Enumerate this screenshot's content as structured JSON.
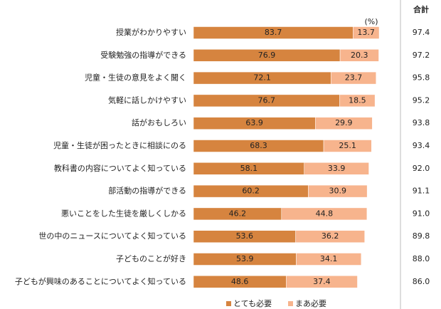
{
  "chart_data": {
    "type": "stacked-bar",
    "unit_label": "(%)",
    "categories": [
      "授業がわかりやすい",
      "受験勉強の指導ができる",
      "児童・生徒の意見をよく聞く",
      "気軽に話しかけやすい",
      "話がおもしろい",
      "児童・生徒が困ったときに相談にのる",
      "教科書の内容についてよく知っている",
      "部活動の指導ができる",
      "悪いことをした生徒を厳しくしかる",
      "世の中のニュースについてよく知っている",
      "子どものことが好き",
      "子どもが興味のあることについてよく知っている"
    ],
    "series": [
      {
        "name": "とても必要",
        "color": "#d6843f",
        "values": [
          83.7,
          76.9,
          72.1,
          76.7,
          63.9,
          68.3,
          58.1,
          60.2,
          46.2,
          53.6,
          53.9,
          48.6
        ]
      },
      {
        "name": "まあ必要",
        "color": "#f7b48d",
        "values": [
          13.7,
          20.3,
          23.7,
          18.5,
          29.9,
          25.1,
          33.9,
          30.9,
          44.8,
          36.2,
          34.1,
          37.4
        ]
      }
    ],
    "totals": {
      "label": "合計",
      "values": [
        97.4,
        97.2,
        95.8,
        95.2,
        93.8,
        93.4,
        92.0,
        91.1,
        91.0,
        89.8,
        88.0,
        86.0
      ],
      "value_labels": [
        "97.4",
        "97.2",
        "95.8",
        "95.2",
        "93.8",
        "93.4",
        "92.0",
        "91.1",
        "91.0",
        "89.8",
        "88.0",
        "86.0"
      ]
    }
  }
}
